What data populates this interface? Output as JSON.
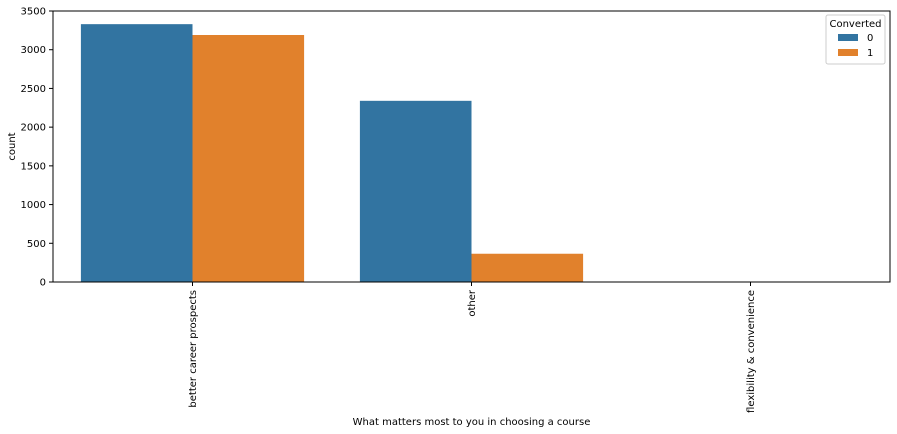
{
  "chart_data": {
    "type": "bar",
    "title": "",
    "xlabel": "What matters most to you in choosing a course",
    "ylabel": "count",
    "categories": [
      "better career prospects",
      "other",
      "flexibility & convenience"
    ],
    "series": [
      {
        "name": "0",
        "color": "#3274a1",
        "values": [
          3330,
          2340,
          1
        ]
      },
      {
        "name": "1",
        "color": "#e1812c",
        "values": [
          3190,
          365,
          1
        ]
      }
    ],
    "ylim": [
      0,
      3500
    ],
    "yticks": [
      0,
      500,
      1000,
      1500,
      2000,
      2500,
      3000,
      3500
    ],
    "grid": false,
    "legend": {
      "title": "Converted",
      "position": "top-right"
    }
  }
}
